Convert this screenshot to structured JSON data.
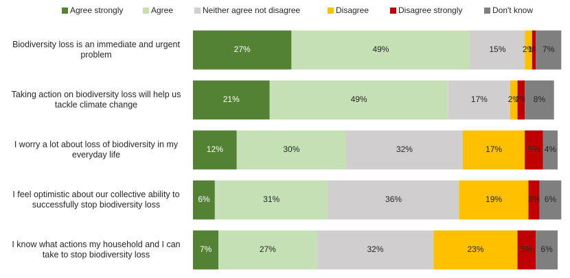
{
  "chart_data": {
    "type": "stacked-bar-horizontal",
    "categories": [
      "Biodiversity loss is an immediate and urgent problem",
      "Taking action on biodiversity loss will help us tackle climate change",
      "I worry a lot about loss of biodiversity in my everyday life",
      "I feel optimistic about our collective ability to successfully stop biodiversity loss",
      "I know what actions my household and I can take to stop biodiversity loss"
    ],
    "xlim": [
      0,
      100
    ],
    "legend": "top",
    "series": [
      {
        "name": "Agree strongly",
        "color": "#548235",
        "values": [
          27,
          21,
          12,
          6,
          7
        ],
        "value_labels": [
          "27%",
          "21%",
          "12%",
          "6%",
          "7%"
        ]
      },
      {
        "name": "Agree",
        "color": "#c5e0b4",
        "values": [
          49,
          49,
          30,
          31,
          27
        ],
        "value_labels": [
          "49%",
          "49%",
          "30%",
          "31%",
          "27%"
        ]
      },
      {
        "name": "Neither agree not disagree",
        "color": "#d0cece",
        "values": [
          15,
          17,
          32,
          36,
          32
        ],
        "value_labels": [
          "15%",
          "17%",
          "32%",
          "36%",
          "32%"
        ]
      },
      {
        "name": "Disagree",
        "color": "#ffc000",
        "values": [
          2,
          2,
          17,
          19,
          23
        ],
        "value_labels": [
          "2%",
          "2%",
          "17%",
          "19%",
          "23%"
        ]
      },
      {
        "name": "Disagree strongly",
        "color": "#c00000",
        "values": [
          1,
          2,
          5,
          3,
          5
        ],
        "value_labels": [
          "1%",
          "2%",
          "5%",
          "3%",
          "5%"
        ]
      },
      {
        "name": "Don't know",
        "color": "#7f7f7f",
        "values": [
          7,
          8,
          4,
          6,
          6
        ],
        "value_labels": [
          "7%",
          "8%",
          "4%",
          "6%",
          "6%"
        ]
      }
    ]
  }
}
